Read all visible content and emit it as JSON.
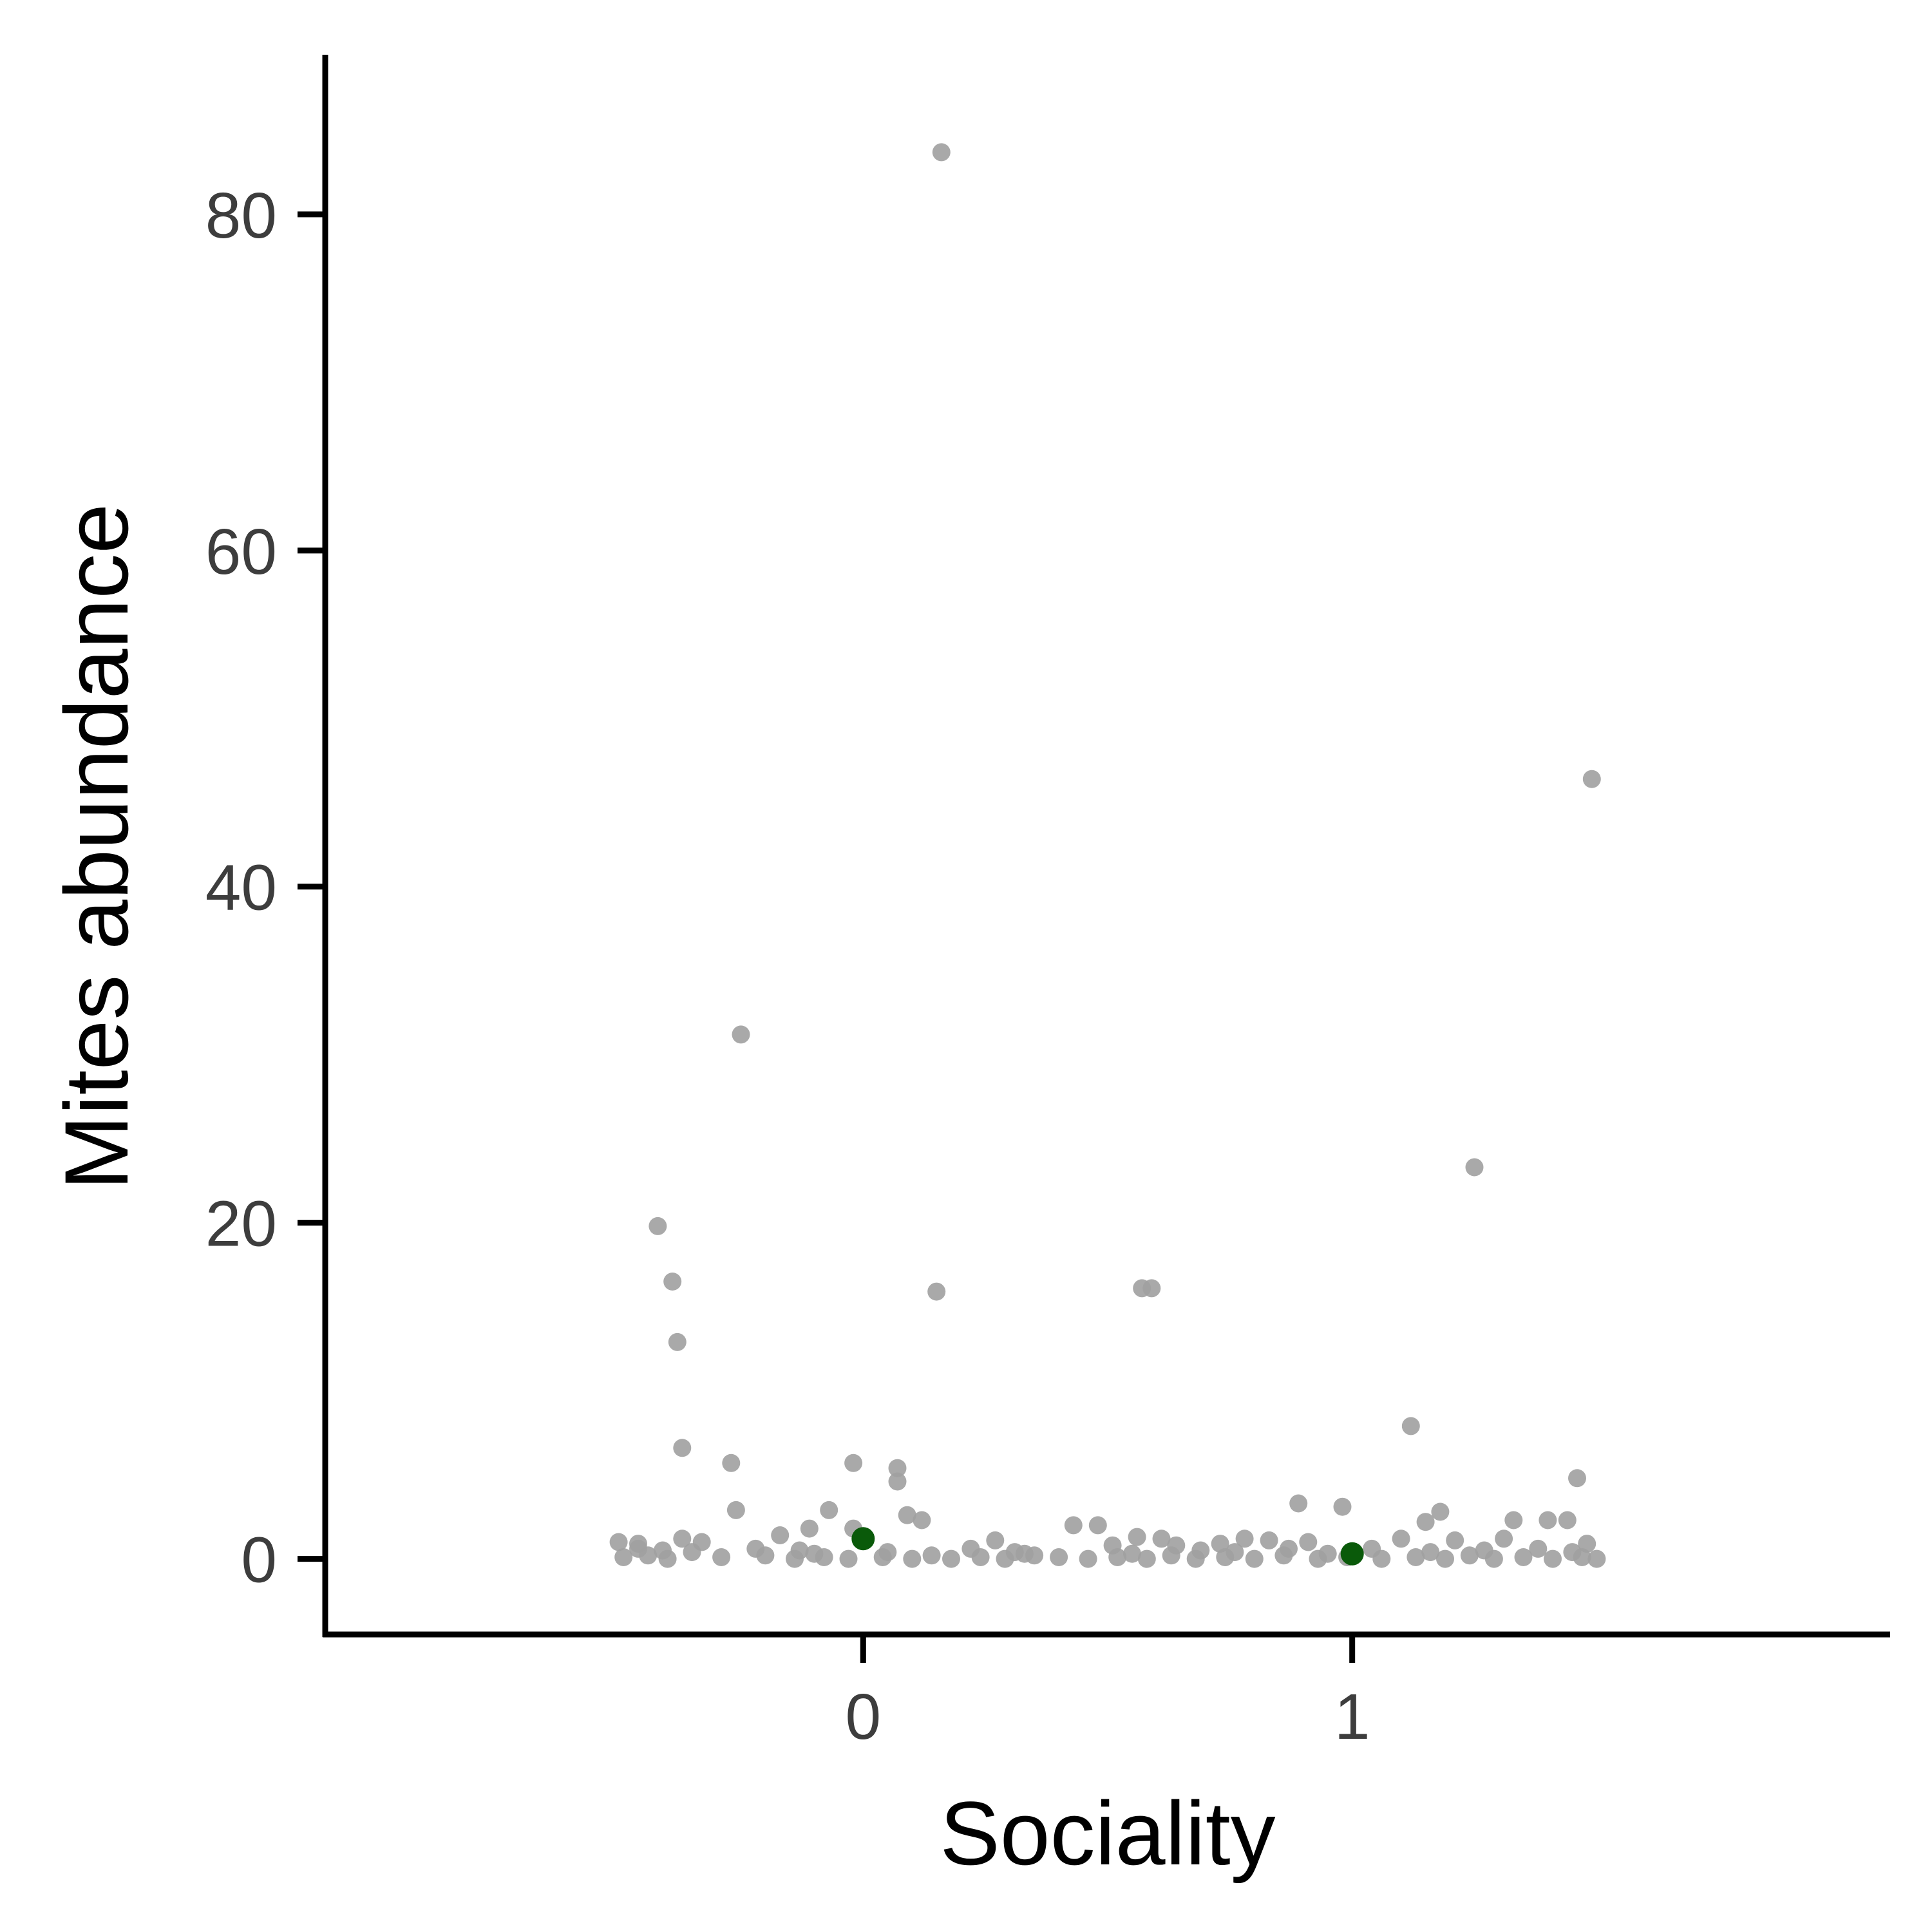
{
  "chart_data": {
    "type": "scatter",
    "title": "",
    "xlabel": "Sociality",
    "ylabel": "Mites abundance",
    "xlim": [
      -1.1,
      2.1
    ],
    "ylim": [
      -4.5,
      89.5
    ],
    "x_ticks": [
      0,
      1
    ],
    "y_ticks": [
      0,
      20,
      40,
      60,
      80
    ],
    "grid": false,
    "legend": "none",
    "colors": {
      "points": "#a0a0a0",
      "means": "#0a5a0a",
      "axis": "#000000"
    },
    "series": [
      {
        "role": "jittered observations",
        "points": [
          [
            0.16,
            83.7
          ],
          [
            1.49,
            46.4
          ],
          [
            -0.25,
            31.2
          ],
          [
            1.25,
            23.3
          ],
          [
            -0.42,
            19.8
          ],
          [
            -0.39,
            16.5
          ],
          [
            0.15,
            15.9
          ],
          [
            0.57,
            16.1
          ],
          [
            0.59,
            16.1
          ],
          [
            -0.38,
            12.9
          ],
          [
            1.12,
            7.9
          ],
          [
            -0.37,
            6.6
          ],
          [
            -0.27,
            5.7
          ],
          [
            -0.02,
            5.7
          ],
          [
            0.07,
            5.4
          ],
          [
            0.07,
            4.6
          ],
          [
            1.46,
            4.8
          ],
          [
            0.89,
            3.3
          ],
          [
            0.98,
            3.1
          ],
          [
            1.18,
            2.8
          ],
          [
            -0.26,
            2.9
          ],
          [
            -0.07,
            2.9
          ],
          [
            0.09,
            2.6
          ],
          [
            0.12,
            2.3
          ],
          [
            1.33,
            2.3
          ],
          [
            1.4,
            2.3
          ],
          [
            1.44,
            2.3
          ],
          [
            1.15,
            2.2
          ],
          [
            0.43,
            2.0
          ],
          [
            0.48,
            2.0
          ],
          [
            -0.11,
            1.8
          ],
          [
            -0.02,
            1.8
          ],
          [
            -0.17,
            1.4
          ],
          [
            0.56,
            1.3
          ],
          [
            0.61,
            1.2
          ],
          [
            -0.37,
            1.2
          ],
          [
            -0.33,
            1.0
          ],
          [
            -0.5,
            1.0
          ],
          [
            -0.46,
            0.9
          ],
          [
            0.27,
            1.1
          ],
          [
            0.78,
            1.2
          ],
          [
            0.83,
            1.1
          ],
          [
            1.1,
            1.2
          ],
          [
            1.21,
            1.1
          ],
          [
            1.31,
            1.2
          ],
          [
            1.48,
            0.9
          ],
          [
            0.51,
            0.8
          ],
          [
            0.91,
            1.0
          ],
          [
            0.73,
            0.9
          ],
          [
            0.64,
            0.8
          ],
          [
            -0.46,
            0.6
          ],
          [
            -0.41,
            0.5
          ],
          [
            -0.35,
            0.4
          ],
          [
            -0.22,
            0.6
          ],
          [
            -0.13,
            0.5
          ],
          [
            0.05,
            0.4
          ],
          [
            0.22,
            0.6
          ],
          [
            0.33,
            0.3
          ],
          [
            0.69,
            0.5
          ],
          [
            0.87,
            0.6
          ],
          [
            1.04,
            0.6
          ],
          [
            1.27,
            0.5
          ],
          [
            1.38,
            0.6
          ],
          [
            1.45,
            0.4
          ],
          [
            -0.49,
            0.1
          ],
          [
            -0.44,
            0.2
          ],
          [
            -0.4,
            0.0
          ],
          [
            -0.29,
            0.1
          ],
          [
            -0.2,
            0.2
          ],
          [
            -0.14,
            0.0
          ],
          [
            -0.08,
            0.1
          ],
          [
            -0.03,
            0.0
          ],
          [
            0.04,
            0.1
          ],
          [
            0.1,
            0.0
          ],
          [
            0.14,
            0.2
          ],
          [
            0.18,
            0.0
          ],
          [
            0.24,
            0.1
          ],
          [
            0.29,
            0.0
          ],
          [
            0.35,
            0.2
          ],
          [
            0.4,
            0.1
          ],
          [
            0.46,
            0.0
          ],
          [
            0.52,
            0.1
          ],
          [
            0.58,
            0.0
          ],
          [
            0.63,
            0.2
          ],
          [
            0.68,
            0.0
          ],
          [
            0.74,
            0.1
          ],
          [
            0.8,
            0.0
          ],
          [
            0.86,
            0.2
          ],
          [
            0.93,
            0.0
          ],
          [
            0.99,
            0.1
          ],
          [
            1.06,
            0.0
          ],
          [
            1.13,
            0.1
          ],
          [
            1.19,
            0.0
          ],
          [
            1.24,
            0.2
          ],
          [
            1.29,
            0.0
          ],
          [
            1.35,
            0.1
          ],
          [
            1.41,
            0.0
          ],
          [
            1.47,
            0.1
          ],
          [
            1.5,
            0.0
          ],
          [
            0.31,
            0.4
          ],
          [
            0.76,
            0.4
          ],
          [
            0.95,
            0.3
          ],
          [
            1.16,
            0.4
          ],
          [
            0.55,
            0.3
          ],
          [
            -0.1,
            0.3
          ]
        ]
      },
      {
        "role": "group means",
        "points": [
          [
            0,
            1.2
          ],
          [
            1,
            0.3
          ]
        ]
      }
    ]
  }
}
